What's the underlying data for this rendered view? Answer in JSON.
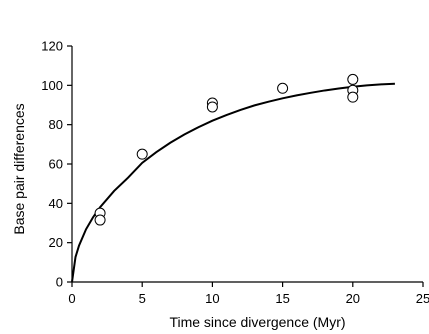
{
  "chart_data": {
    "type": "scatter",
    "xlabel": "Time since divergence (Myr)",
    "ylabel": "Base pair differences",
    "xlim": [
      0,
      25
    ],
    "ylim": [
      0,
      120
    ],
    "x_ticks": [
      0,
      5,
      10,
      15,
      20,
      25
    ],
    "y_ticks": [
      0,
      20,
      40,
      60,
      80,
      100,
      120
    ],
    "grid": false,
    "points": [
      {
        "x": 2,
        "y": 35
      },
      {
        "x": 2,
        "y": 31.5
      },
      {
        "x": 5,
        "y": 65
      },
      {
        "x": 10,
        "y": 91
      },
      {
        "x": 10,
        "y": 89
      },
      {
        "x": 15,
        "y": 98.5
      },
      {
        "x": 20,
        "y": 103
      },
      {
        "x": 20,
        "y": 97.5
      },
      {
        "x": 20,
        "y": 94
      }
    ],
    "fitted_curve": {
      "x": [
        0,
        0.25,
        0.5,
        1,
        1.5,
        2,
        3,
        4,
        5,
        6,
        7,
        8,
        9,
        10,
        11,
        12,
        13,
        14,
        15,
        16,
        17,
        18,
        19,
        20,
        21,
        22,
        23
      ],
      "y": [
        0,
        12.7,
        18.5,
        26.8,
        32.9,
        38.0,
        46.3,
        53.1,
        60.6,
        66.0,
        70.8,
        75.0,
        78.7,
        82.0,
        84.9,
        87.5,
        89.8,
        91.7,
        93.4,
        94.9,
        96.2,
        97.4,
        98.4,
        99.3,
        100.0,
        100.5,
        100.8
      ]
    }
  }
}
